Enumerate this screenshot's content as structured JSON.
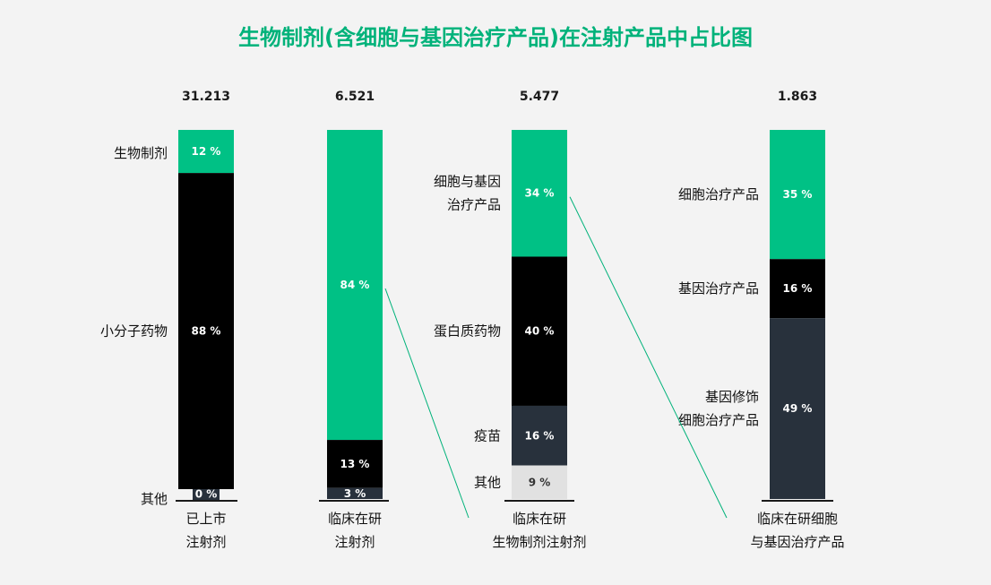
{
  "title": "生物制剂(含细胞与基因治疗产品)在注射产品中占比图",
  "colors": {
    "green": "#00c185",
    "black": "#000000",
    "navy": "#28313c",
    "grey": "#e1e1e1",
    "connector": "#00b27a",
    "axis": "#1a1a1a"
  },
  "chart_data": {
    "type": "bar",
    "stacked": true,
    "percent": true,
    "bars": [
      {
        "total": "31.213",
        "label_lines": [
          "已上市",
          "注射剂"
        ],
        "segments": [
          {
            "name_lines": [
              "生物制剂"
            ],
            "value": 12,
            "label": "12 %",
            "color": "green"
          },
          {
            "name_lines": [
              "小分子药物"
            ],
            "value": 88,
            "label": "88 %",
            "color": "black"
          },
          {
            "name_lines": [
              "其他"
            ],
            "value": 0,
            "label": "0 %",
            "color": "navy"
          }
        ]
      },
      {
        "total": "6.521",
        "label_lines": [
          "临床在研",
          "注射剂"
        ],
        "segments": [
          {
            "name_lines": [],
            "value": 84,
            "label": "84 %",
            "color": "green"
          },
          {
            "name_lines": [],
            "value": 13,
            "label": "13 %",
            "color": "black"
          },
          {
            "name_lines": [],
            "value": 3,
            "label": "3 %",
            "color": "navy"
          }
        ]
      },
      {
        "total": "5.477",
        "label_lines": [
          "临床在研",
          "生物制剂注射剂"
        ],
        "segments": [
          {
            "name_lines": [
              "细胞与基因",
              "治疗产品"
            ],
            "value": 34,
            "label": "34 %",
            "color": "green"
          },
          {
            "name_lines": [
              "蛋白质药物"
            ],
            "value": 40,
            "label": "40 %",
            "color": "black"
          },
          {
            "name_lines": [
              "疫苗"
            ],
            "value": 16,
            "label": "16 %",
            "color": "navy"
          },
          {
            "name_lines": [
              "其他"
            ],
            "value": 9,
            "label": "9 %",
            "color": "grey"
          }
        ]
      },
      {
        "total": "1.863",
        "label_lines": [
          "临床在研细胞",
          "与基因治疗产品"
        ],
        "segments": [
          {
            "name_lines": [
              "细胞治疗产品"
            ],
            "value": 35,
            "label": "35 %",
            "color": "green"
          },
          {
            "name_lines": [
              "基因治疗产品"
            ],
            "value": 16,
            "label": "16 %",
            "color": "black"
          },
          {
            "name_lines": [
              "基因修饰",
              "细胞治疗产品"
            ],
            "value": 49,
            "label": "49 %",
            "color": "navy"
          }
        ]
      }
    ],
    "connectors": [
      {
        "from_bar": 1,
        "to_bar": 2
      },
      {
        "from_bar": 2,
        "to_bar": 3
      }
    ]
  }
}
